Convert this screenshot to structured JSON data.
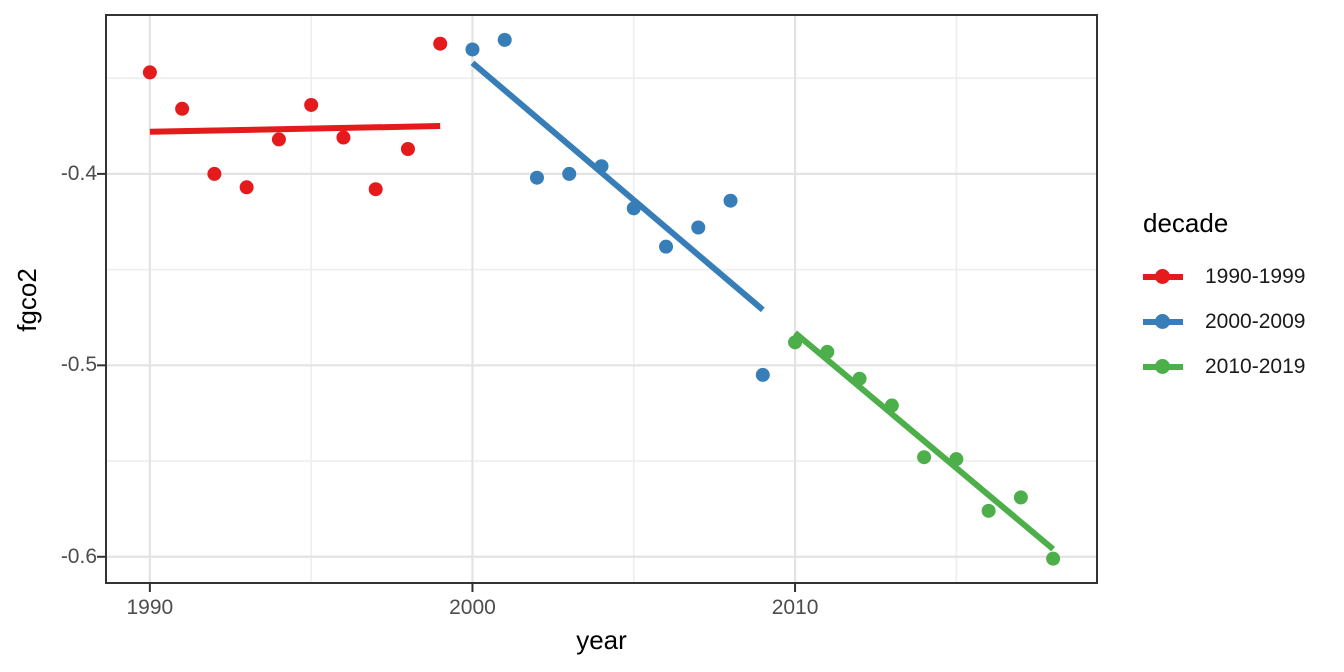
{
  "chart_data": {
    "type": "scatter",
    "title": "",
    "xlabel": "year",
    "ylabel": "fgco2",
    "legend_title": "decade",
    "legend_position": "right",
    "grid": true,
    "x_domain": [
      1988.64,
      2019.36
    ],
    "y_domain": [
      -0.6137,
      -0.317
    ],
    "x_ticks": [
      {
        "value": 1990,
        "label": "1990"
      },
      {
        "value": 2000,
        "label": "2000"
      },
      {
        "value": 2010,
        "label": "2010"
      }
    ],
    "x_minor": [
      1995,
      2005,
      2015
    ],
    "y_ticks": [
      {
        "value": -0.4,
        "label": "-0.4"
      },
      {
        "value": -0.5,
        "label": "-0.5"
      },
      {
        "value": -0.6,
        "label": "-0.6"
      }
    ],
    "y_minor": [
      -0.35,
      -0.45,
      -0.55
    ],
    "series": [
      {
        "name": "1990-1999",
        "color": "#E41A1C",
        "points": [
          [
            1990,
            -0.347
          ],
          [
            1991,
            -0.366
          ],
          [
            1992,
            -0.4
          ],
          [
            1993,
            -0.407
          ],
          [
            1994,
            -0.382
          ],
          [
            1995,
            -0.364
          ],
          [
            1996,
            -0.381
          ],
          [
            1997,
            -0.408
          ],
          [
            1998,
            -0.387
          ],
          [
            1999,
            -0.332
          ]
        ],
        "trend": [
          [
            1990,
            -0.378
          ],
          [
            1999,
            -0.375
          ]
        ]
      },
      {
        "name": "2000-2009",
        "color": "#377EB8",
        "points": [
          [
            2000,
            -0.335
          ],
          [
            2001,
            -0.33
          ],
          [
            2002,
            -0.402
          ],
          [
            2003,
            -0.4
          ],
          [
            2004,
            -0.396
          ],
          [
            2005,
            -0.418
          ],
          [
            2006,
            -0.438
          ],
          [
            2007,
            -0.428
          ],
          [
            2008,
            -0.414
          ],
          [
            2009,
            -0.505
          ]
        ],
        "trend": [
          [
            2000,
            -0.342
          ],
          [
            2009,
            -0.471
          ]
        ]
      },
      {
        "name": "2010-2019",
        "color": "#4DAF4A",
        "points": [
          [
            2010,
            -0.488
          ],
          [
            2011,
            -0.493
          ],
          [
            2012,
            -0.507
          ],
          [
            2013,
            -0.521
          ],
          [
            2014,
            -0.548
          ],
          [
            2015,
            -0.549
          ],
          [
            2016,
            -0.576
          ],
          [
            2017,
            -0.569
          ],
          [
            2018,
            -0.601
          ]
        ],
        "trend": [
          [
            2010,
            -0.483
          ],
          [
            2018,
            -0.596
          ]
        ]
      }
    ]
  },
  "style": {
    "background": "#FFFFFF",
    "panel_background": "#FFFFFF",
    "panel_border": "#333333",
    "grid_major": "#E3E3E3",
    "grid_minor": "#EEEEEE",
    "tick_mark": "#333333",
    "tick_text": "#4D4D4D",
    "title_text": "#000000",
    "point_radius": 7,
    "trend_width": 6
  }
}
